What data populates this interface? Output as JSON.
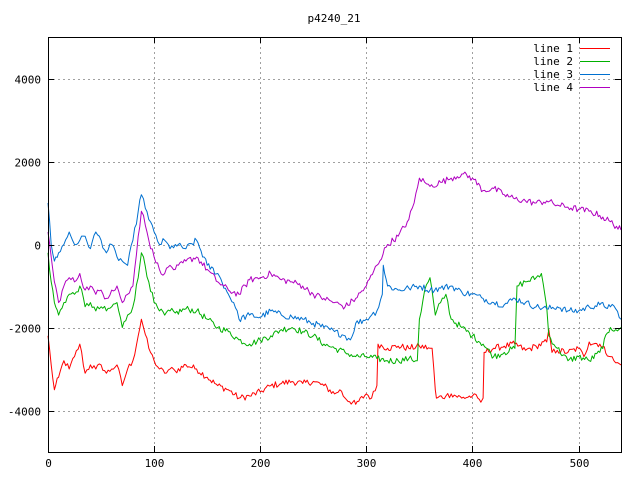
{
  "chart_data": {
    "type": "line",
    "title": "p4240_21",
    "xlabel": "",
    "ylabel": "",
    "xlim": [
      0,
      540
    ],
    "ylim": [
      -5000,
      5000
    ],
    "xticks": [
      0,
      100,
      200,
      300,
      400,
      500
    ],
    "yticks": [
      -4000,
      -2000,
      0,
      2000,
      4000
    ],
    "grid": true,
    "legend_position": "top-right",
    "series": [
      {
        "name": "line 1",
        "color": "#ff0000",
        "x": [
          0,
          3,
          6,
          10,
          15,
          20,
          25,
          30,
          35,
          40,
          45,
          50,
          55,
          60,
          65,
          70,
          75,
          80,
          85,
          88,
          90,
          95,
          100,
          105,
          110,
          115,
          120,
          130,
          140,
          150,
          160,
          170,
          180,
          190,
          200,
          210,
          220,
          230,
          240,
          250,
          260,
          270,
          275,
          280,
          290,
          300,
          305,
          310,
          311,
          320,
          330,
          340,
          350,
          360,
          362,
          365,
          366,
          375,
          380,
          390,
          400,
          405,
          408,
          410,
          411,
          420,
          430,
          440,
          450,
          460,
          470,
          472,
          475,
          480,
          490,
          500,
          505,
          510,
          520,
          530,
          535,
          540
        ],
        "values": [
          -2200,
          -2900,
          -3500,
          -3200,
          -2800,
          -3000,
          -2700,
          -2400,
          -3100,
          -2900,
          -3000,
          -2900,
          -3100,
          -3000,
          -2900,
          -3400,
          -3000,
          -2800,
          -2200,
          -1800,
          -2000,
          -2500,
          -2800,
          -3000,
          -3100,
          -3000,
          -3050,
          -2900,
          -3000,
          -3200,
          -3400,
          -3500,
          -3700,
          -3650,
          -3550,
          -3400,
          -3350,
          -3300,
          -3350,
          -3300,
          -3400,
          -3600,
          -3500,
          -3700,
          -3850,
          -3600,
          -3700,
          -3400,
          -2400,
          -2500,
          -2450,
          -2500,
          -2450,
          -2500,
          -2500,
          -3500,
          -3700,
          -3650,
          -3600,
          -3700,
          -3650,
          -3700,
          -3800,
          -3700,
          -2600,
          -2500,
          -2450,
          -2400,
          -2550,
          -2450,
          -2350,
          -2050,
          -2600,
          -2550,
          -2600,
          -2500,
          -2700,
          -2350,
          -2400,
          -2700,
          -2850,
          -2900
        ]
      },
      {
        "name": "line 2",
        "color": "#00b000",
        "x": [
          0,
          3,
          6,
          10,
          15,
          20,
          25,
          30,
          35,
          40,
          45,
          50,
          55,
          60,
          65,
          70,
          75,
          80,
          85,
          88,
          90,
          95,
          100,
          105,
          110,
          115,
          120,
          130,
          140,
          150,
          160,
          170,
          180,
          190,
          200,
          210,
          220,
          230,
          240,
          250,
          260,
          270,
          280,
          290,
          300,
          310,
          320,
          330,
          340,
          348,
          350,
          355,
          360,
          365,
          370,
          375,
          380,
          390,
          400,
          410,
          420,
          430,
          440,
          442,
          450,
          460,
          465,
          470,
          472,
          480,
          490,
          500,
          510,
          520,
          530,
          535,
          540
        ],
        "values": [
          -200,
          -900,
          -1400,
          -1700,
          -1400,
          -1200,
          -1200,
          -1000,
          -1500,
          -1400,
          -1600,
          -1500,
          -1600,
          -1500,
          -1400,
          -2000,
          -1700,
          -1500,
          -800,
          -200,
          -300,
          -900,
          -1400,
          -1600,
          -1700,
          -1600,
          -1650,
          -1550,
          -1600,
          -1800,
          -2000,
          -2100,
          -2300,
          -2400,
          -2300,
          -2200,
          -2050,
          -2000,
          -2100,
          -2200,
          -2400,
          -2500,
          -2600,
          -2700,
          -2700,
          -2750,
          -2800,
          -2800,
          -2750,
          -2800,
          -1800,
          -1100,
          -800,
          -1700,
          -1400,
          -1200,
          -1800,
          -2000,
          -2200,
          -2400,
          -2700,
          -2600,
          -2500,
          -1000,
          -900,
          -800,
          -700,
          -1500,
          -2200,
          -2500,
          -2800,
          -2700,
          -2800,
          -2600,
          -2000,
          -2050,
          -2000
        ]
      },
      {
        "name": "line 3",
        "color": "#0070d0",
        "x": [
          0,
          3,
          6,
          10,
          15,
          20,
          25,
          30,
          35,
          40,
          45,
          50,
          55,
          60,
          65,
          70,
          75,
          80,
          85,
          88,
          90,
          95,
          100,
          105,
          110,
          115,
          120,
          130,
          140,
          150,
          160,
          170,
          175,
          180,
          190,
          200,
          210,
          220,
          230,
          240,
          250,
          260,
          270,
          280,
          285,
          290,
          300,
          305,
          310,
          315,
          316,
          320,
          330,
          340,
          350,
          360,
          370,
          380,
          390,
          400,
          410,
          420,
          430,
          440,
          450,
          460,
          470,
          480,
          490,
          500,
          510,
          520,
          530,
          535,
          540
        ],
        "values": [
          1000,
          0,
          -400,
          -200,
          0,
          300,
          0,
          100,
          200,
          -100,
          300,
          100,
          -200,
          0,
          -300,
          -400,
          -500,
          100,
          800,
          1200,
          1100,
          600,
          300,
          0,
          100,
          -100,
          0,
          -100,
          100,
          -500,
          -700,
          -1200,
          -1400,
          -1800,
          -1700,
          -1750,
          -1600,
          -1700,
          -1750,
          -1800,
          -1900,
          -2000,
          -2100,
          -2200,
          -2300,
          -1900,
          -1800,
          -1700,
          -1600,
          -1200,
          -500,
          -1000,
          -1100,
          -1050,
          -1000,
          -1100,
          -1050,
          -1000,
          -1150,
          -1200,
          -1300,
          -1400,
          -1450,
          -1300,
          -1400,
          -1500,
          -1550,
          -1500,
          -1600,
          -1600,
          -1500,
          -1450,
          -1500,
          -1550,
          -1800
        ]
      },
      {
        "name": "line 4",
        "color": "#b000c0",
        "x": [
          0,
          3,
          6,
          10,
          15,
          20,
          25,
          30,
          35,
          40,
          45,
          50,
          55,
          60,
          65,
          70,
          75,
          80,
          85,
          88,
          90,
          95,
          100,
          105,
          110,
          115,
          120,
          130,
          140,
          150,
          160,
          170,
          180,
          190,
          200,
          210,
          220,
          230,
          240,
          250,
          260,
          270,
          280,
          290,
          300,
          310,
          320,
          330,
          340,
          345,
          350,
          355,
          360,
          370,
          380,
          390,
          400,
          410,
          420,
          430,
          440,
          450,
          460,
          470,
          480,
          490,
          500,
          510,
          520,
          530,
          540
        ],
        "values": [
          300,
          -300,
          -900,
          -1400,
          -1000,
          -800,
          -900,
          -700,
          -1100,
          -1000,
          -1200,
          -1100,
          -1300,
          -1100,
          -1000,
          -1400,
          -1200,
          -1000,
          200,
          800,
          700,
          100,
          -300,
          -600,
          -700,
          -500,
          -600,
          -400,
          -300,
          -600,
          -900,
          -1100,
          -1200,
          -850,
          -800,
          -700,
          -850,
          -900,
          -1000,
          -1200,
          -1300,
          -1400,
          -1500,
          -1300,
          -1000,
          -500,
          0,
          200,
          600,
          1000,
          1600,
          1500,
          1400,
          1500,
          1600,
          1700,
          1600,
          1300,
          1350,
          1200,
          1100,
          1050,
          1000,
          1050,
          950,
          900,
          850,
          800,
          700,
          550,
          350
        ]
      }
    ]
  }
}
